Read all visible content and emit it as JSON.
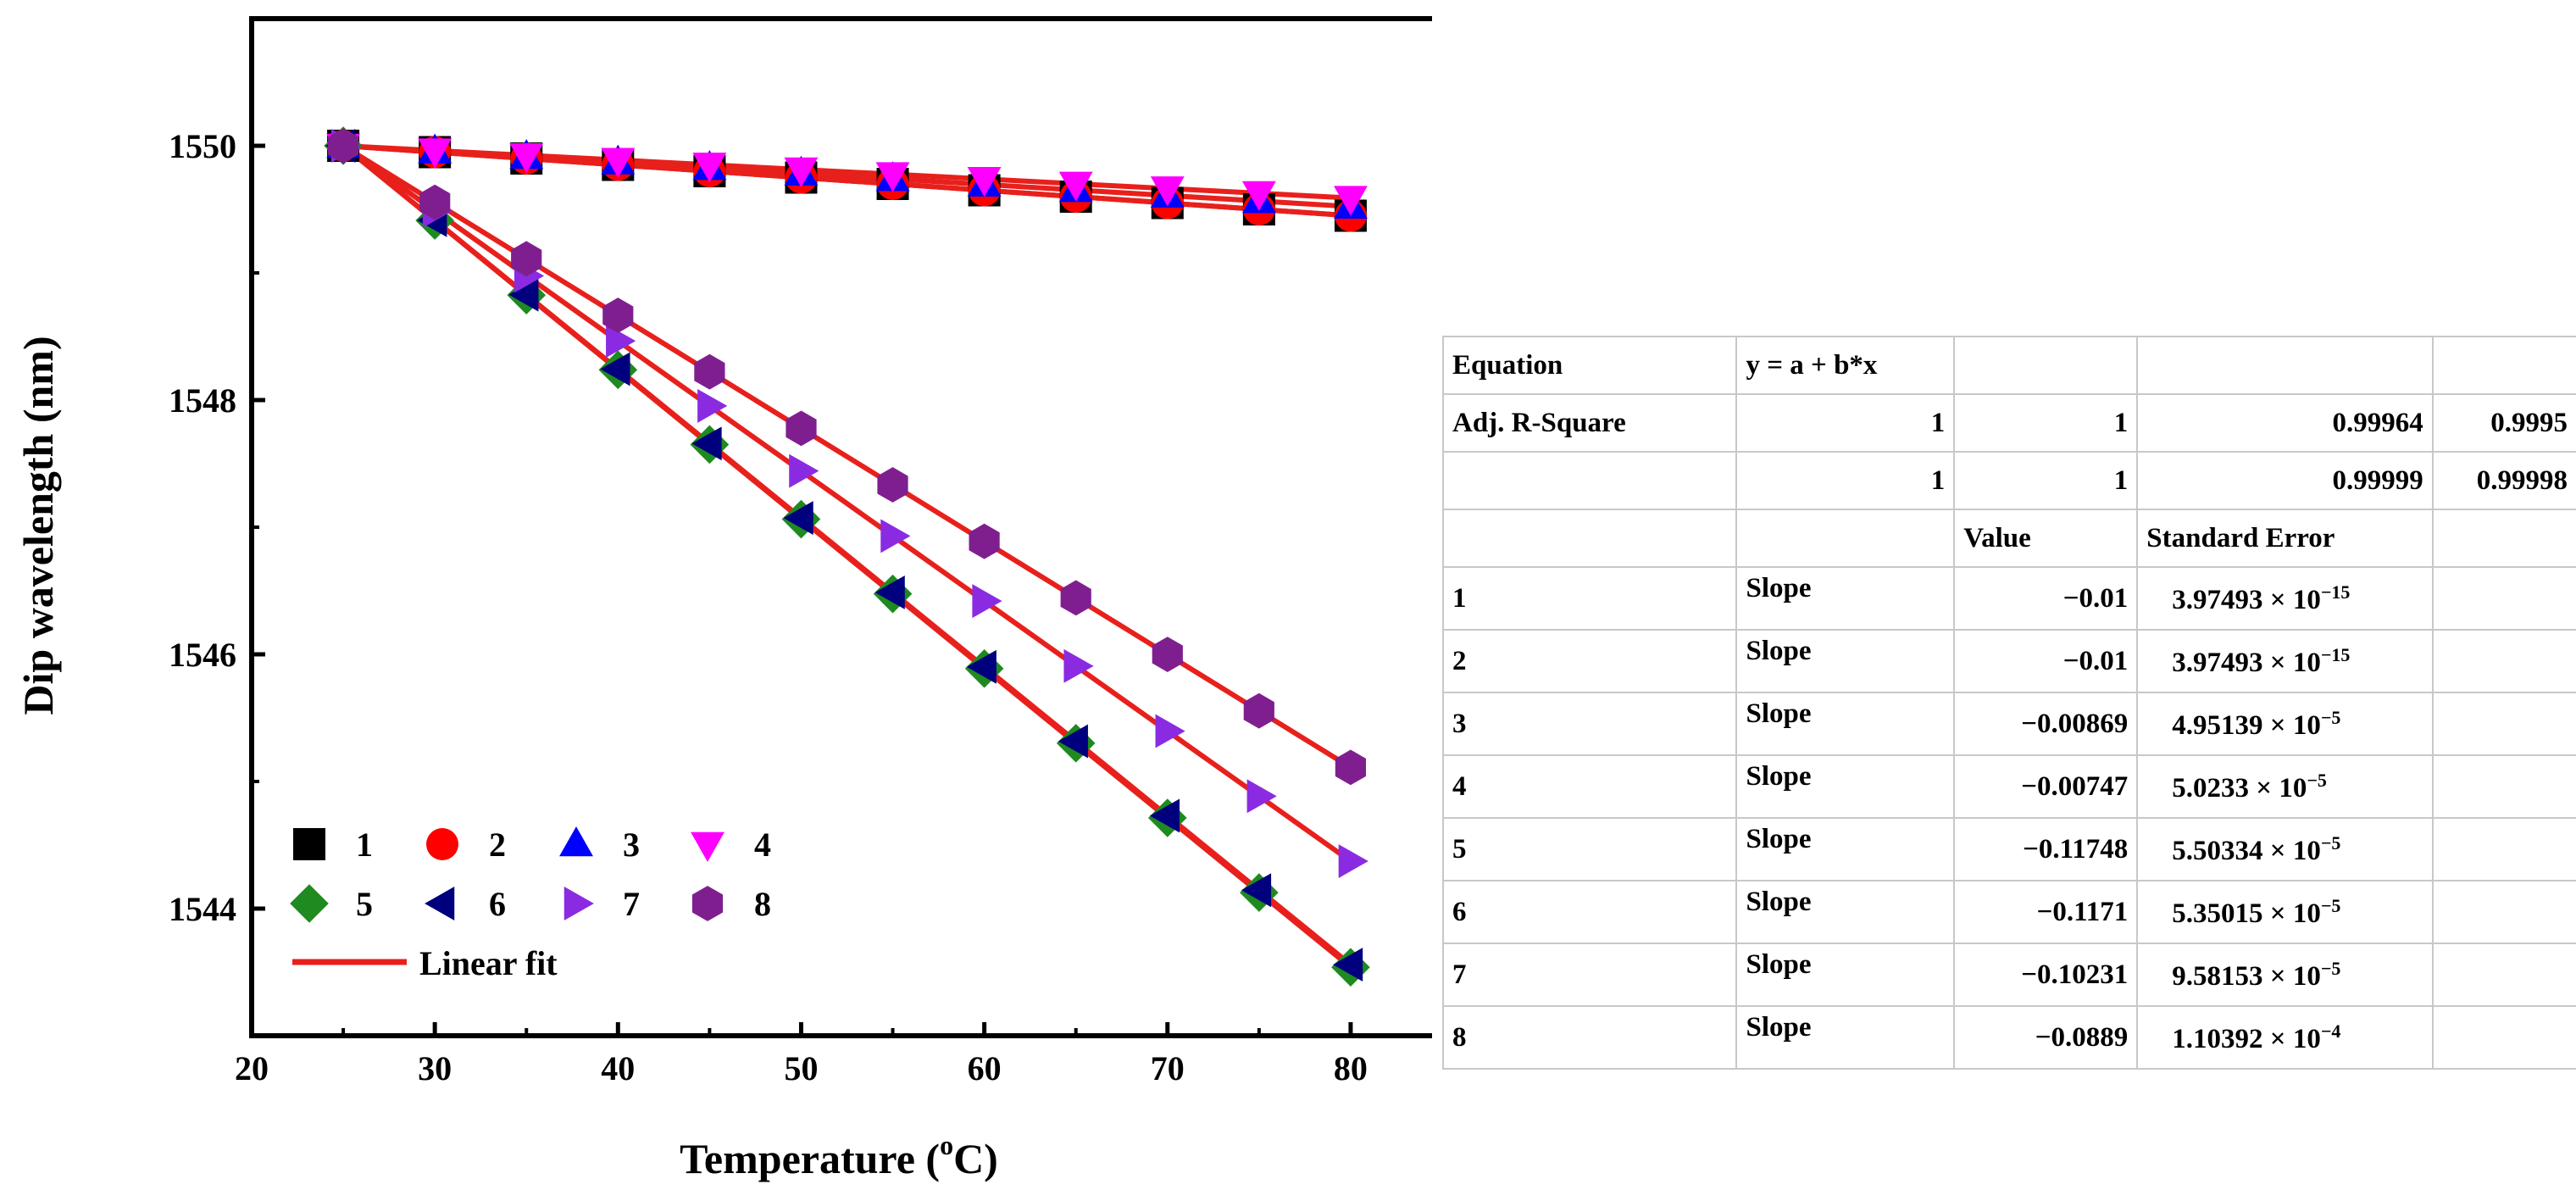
{
  "chart_data": {
    "type": "scatter",
    "xlabel": "Temperature (",
    "xlabel_unit_sup": "o",
    "xlabel_unit": "C)",
    "ylabel": "Dip wavelength (nm)",
    "xlim": [
      20,
      85
    ],
    "ylim": [
      1543,
      1551
    ],
    "xticks": [
      20,
      30,
      40,
      50,
      60,
      70,
      80
    ],
    "yticks": [
      1544,
      1546,
      1548,
      1550
    ],
    "x": [
      25,
      30,
      35,
      40,
      45,
      50,
      55,
      60,
      65,
      70,
      75,
      80
    ],
    "series": [
      {
        "name": "1",
        "marker": "square",
        "color": "#000000",
        "slope": -0.01,
        "intercept_at_25": 1550
      },
      {
        "name": "2",
        "marker": "circle",
        "color": "#ff0000",
        "slope": -0.01,
        "intercept_at_25": 1550
      },
      {
        "name": "3",
        "marker": "triangle-up",
        "color": "#0000ff",
        "slope": -0.00869,
        "intercept_at_25": 1550
      },
      {
        "name": "4",
        "marker": "triangle-down",
        "color": "#ff00ff",
        "slope": -0.00747,
        "intercept_at_25": 1550
      },
      {
        "name": "5",
        "marker": "diamond",
        "color": "#1f8a1f",
        "slope": -0.11748,
        "intercept_at_25": 1550
      },
      {
        "name": "6",
        "marker": "triangle-left",
        "color": "#00007f",
        "slope": -0.1171,
        "intercept_at_25": 1550
      },
      {
        "name": "7",
        "marker": "triangle-right",
        "color": "#8a2be2",
        "slope": -0.10231,
        "intercept_at_25": 1550
      },
      {
        "name": "8",
        "marker": "hexagon",
        "color": "#7f1f8f",
        "slope": -0.0889,
        "intercept_at_25": 1550
      }
    ],
    "fit_label": "Linear fit",
    "fit_color": "#e8201c",
    "legend_position": "bottom-left"
  },
  "table": {
    "equation_label": "Equation",
    "equation_value": "y = a + b*x",
    "adj_r_label": "Adj. R-Square",
    "adj_r_values": [
      "1",
      "1",
      "0.99964",
      "0.9995"
    ],
    "row3_values": [
      "1",
      "1",
      "0.99999",
      "0.99998"
    ],
    "header_value": "Value",
    "header_error": "Standard Error",
    "rows": [
      {
        "id": "1",
        "param": "Slope",
        "value": "−0.01",
        "err_mantissa": "3.97493 × 10",
        "err_exp": "−15"
      },
      {
        "id": "2",
        "param": "Slope",
        "value": "−0.01",
        "err_mantissa": "3.97493 × 10",
        "err_exp": "−15"
      },
      {
        "id": "3",
        "param": "Slope",
        "value": "−0.00869",
        "err_mantissa": "4.95139 × 10",
        "err_exp": "−5"
      },
      {
        "id": "4",
        "param": "Slope",
        "value": "−0.00747",
        "err_mantissa": "5.0233 × 10",
        "err_exp": "−5"
      },
      {
        "id": "5",
        "param": "Slope",
        "value": "−0.11748",
        "err_mantissa": "5.50334 × 10",
        "err_exp": "−5"
      },
      {
        "id": "6",
        "param": "Slope",
        "value": "−0.1171",
        "err_mantissa": "5.35015 × 10",
        "err_exp": "−5"
      },
      {
        "id": "7",
        "param": "Slope",
        "value": "−0.10231",
        "err_mantissa": "9.58153 × 10",
        "err_exp": "−5"
      },
      {
        "id": "8",
        "param": "Slope",
        "value": "−0.0889",
        "err_mantissa": "1.10392 × 10",
        "err_exp": "−4"
      }
    ]
  }
}
